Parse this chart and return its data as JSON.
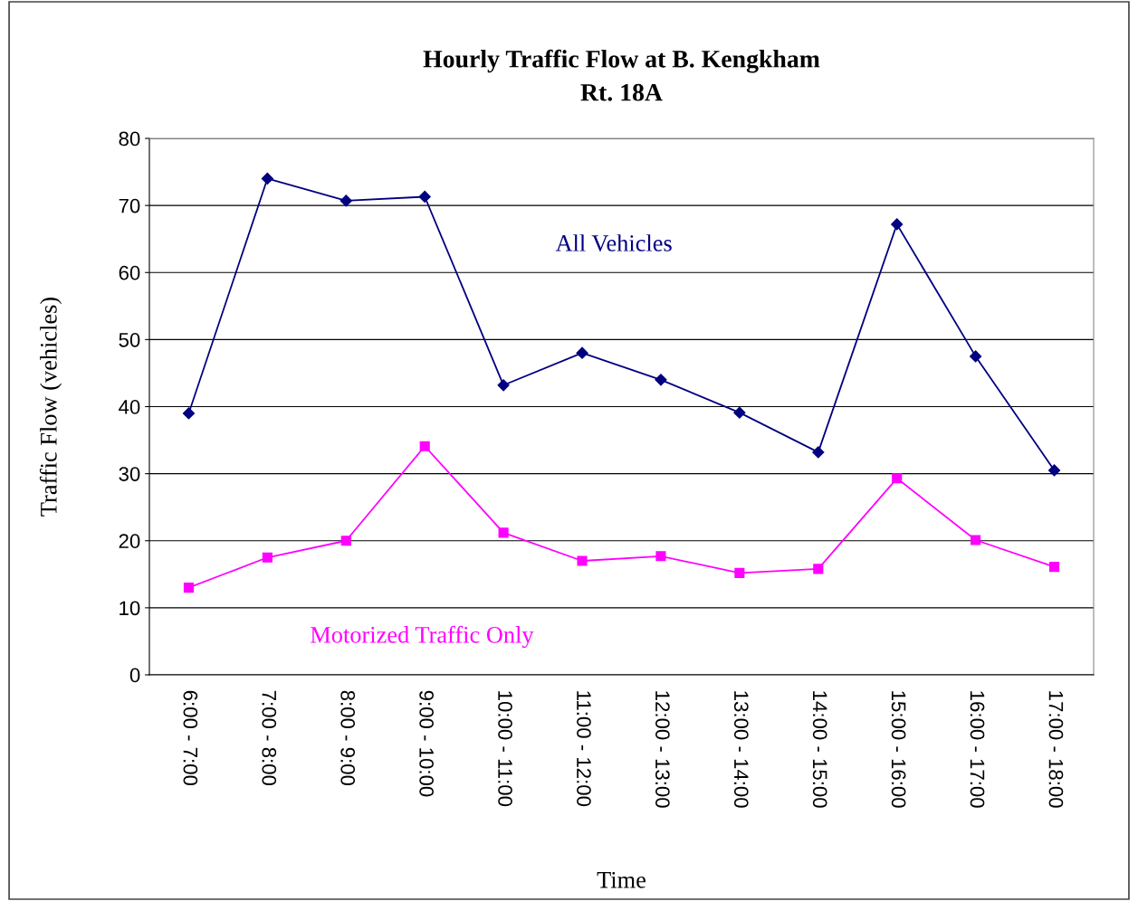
{
  "chart_data": {
    "type": "line",
    "title": "Hourly Traffic Flow at B. Kengkham\nRt. 18A",
    "xlabel": "Time",
    "ylabel": "Traffic Flow (vehicles)",
    "categories": [
      "6:00 - 7:00",
      "7:00 - 8:00",
      "8:00 - 9:00",
      "9:00 - 10:00",
      "10:00 - 11:00",
      "11:00 - 12:00",
      "12:00 - 13:00",
      "13:00 - 14:00",
      "14:00 - 15:00",
      "15:00 - 16:00",
      "16:00 - 17:00",
      "17:00 - 18:00"
    ],
    "series": [
      {
        "name": "All Vehicles",
        "color": "#000080",
        "marker": "diamond",
        "values": [
          39,
          74,
          70.7,
          71.3,
          43.2,
          48,
          44,
          39.1,
          33.2,
          67.2,
          47.5,
          30.5
        ]
      },
      {
        "name": "Motorized Traffic Only",
        "color": "#ff00ff",
        "marker": "square",
        "values": [
          13,
          17.5,
          20,
          34.1,
          21.2,
          17,
          17.7,
          15.2,
          15.8,
          29.3,
          20.1,
          16.1
        ]
      }
    ],
    "ylim": [
      0,
      80
    ],
    "yticks": [
      0,
      10,
      20,
      30,
      40,
      50,
      60,
      70,
      80
    ],
    "grid": "y",
    "legend": false,
    "line_style": "solid"
  }
}
